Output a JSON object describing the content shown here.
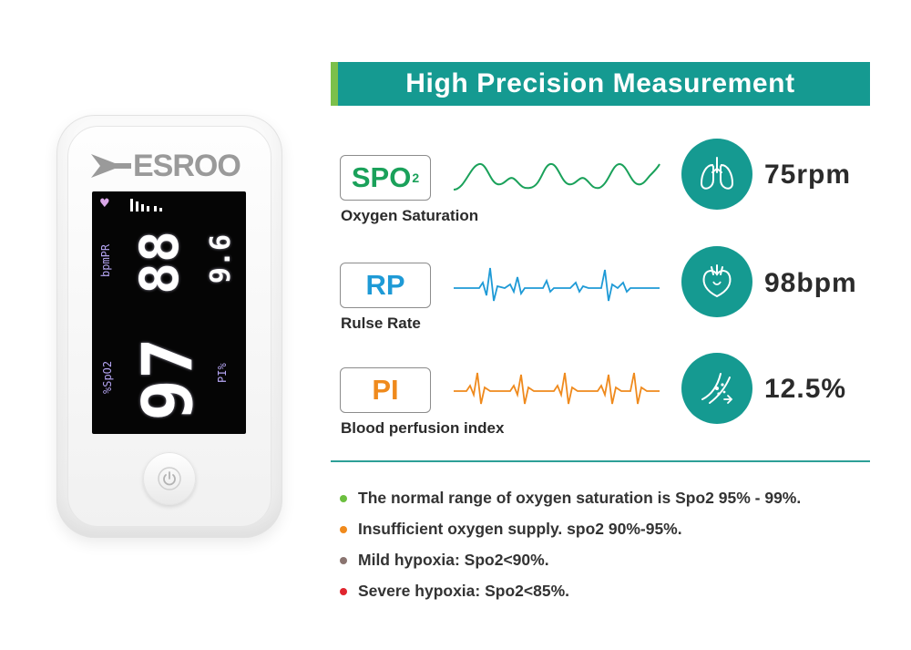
{
  "device": {
    "brand": "ESROO",
    "screen": {
      "pr_label": "bpmPR",
      "spo2_label": "%SpO2",
      "pi_label": "PI%",
      "pr_value": "88",
      "pi_value": "9.6",
      "spo2_value": "97"
    }
  },
  "header": {
    "title": "High Precision Measurement"
  },
  "metrics": [
    {
      "label": "SPO",
      "label_sub": "2",
      "caption": "Oxygen Saturation",
      "reading": "75rpm",
      "icon": "lungs-icon",
      "color": "#1aa15a"
    },
    {
      "label": "RP",
      "label_sub": "",
      "caption": "Rulse Rate",
      "reading": "98bpm",
      "icon": "heart-icon",
      "color": "#1e9ad6"
    },
    {
      "label": "PI",
      "label_sub": "",
      "caption": "Blood perfusion index",
      "reading": "12.5%",
      "icon": "vessel-icon",
      "color": "#ef8a1d"
    }
  ],
  "notes": [
    {
      "text": "The normal range of oxygen saturation is Spo2 95% - 99%.",
      "color": "#6cbf3f"
    },
    {
      "text": "Insufficient oxygen supply. spo2 90%-95%.",
      "color": "#f08a1c"
    },
    {
      "text": "Mild hypoxia: Spo2<90%.",
      "color": "#8a7470"
    },
    {
      "text": "Severe hypoxia: Spo2<85%.",
      "color": "#e0252e"
    }
  ],
  "colors": {
    "teal": "#159a91",
    "accent_green": "#7cc04b"
  }
}
